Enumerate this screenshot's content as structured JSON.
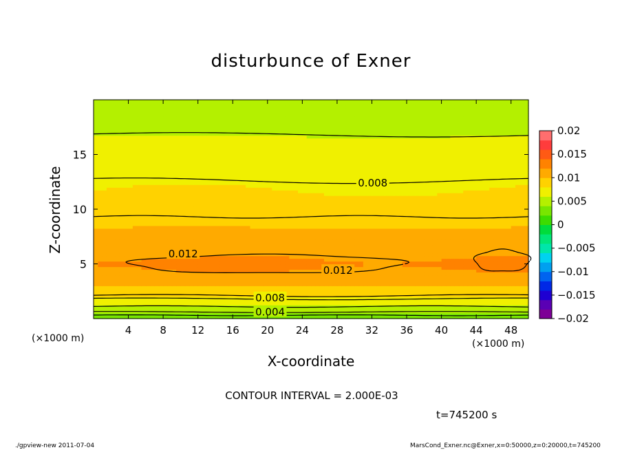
{
  "chart_data": {
    "type": "heatmap",
    "title": "disturbunce of Exner",
    "xlabel": "X-coordinate",
    "ylabel": "Z-coordinate",
    "x_unit_left": "(×1000 m)",
    "x_unit_right": "(×1000 m)",
    "xlim": [
      0,
      50
    ],
    "ylim": [
      0,
      20
    ],
    "x_ticks": [
      4,
      8,
      12,
      16,
      20,
      24,
      28,
      32,
      36,
      40,
      44,
      48
    ],
    "x_tick_labels": [
      "4",
      "8",
      "12",
      "16",
      "20",
      "24",
      "28",
      "32",
      "36",
      "40",
      "44",
      "48"
    ],
    "y_ticks": [
      5,
      10,
      15
    ],
    "y_tick_labels": [
      "5",
      "10",
      "15"
    ],
    "colorbar": {
      "range": [
        -0.02,
        0.02
      ],
      "tick_labels": [
        "0.02",
        "0.015",
        "0.01",
        "0.005",
        "0",
        "−0.005",
        "−0.01",
        "−0.015",
        "−0.02"
      ],
      "colors": [
        "#7d0096",
        "#5a00b4",
        "#1e00d2",
        "#0028e6",
        "#0064f0",
        "#00a0f0",
        "#00d2f0",
        "#00e6aa",
        "#00e678",
        "#00dc3c",
        "#3cdc00",
        "#78e600",
        "#b4f000",
        "#f0f000",
        "#ffd200",
        "#ffaa00",
        "#ff8200",
        "#ff5a14",
        "#ff3c3c",
        "#ff6e6e"
      ]
    },
    "approx_profile_z_value": [
      [
        0,
        0.003
      ],
      [
        1,
        0.005
      ],
      [
        2,
        0.008
      ],
      [
        3,
        0.01
      ],
      [
        4,
        0.0115
      ],
      [
        5,
        0.0125
      ],
      [
        6,
        0.0115
      ],
      [
        7,
        0.0108
      ],
      [
        8,
        0.0102
      ],
      [
        9,
        0.0095
      ],
      [
        10,
        0.0088
      ],
      [
        11,
        0.0083
      ],
      [
        12,
        0.0079
      ],
      [
        13,
        0.0075
      ],
      [
        14,
        0.0071
      ],
      [
        15,
        0.0068
      ],
      [
        16,
        0.0064
      ],
      [
        17,
        0.0058
      ],
      [
        18,
        0.0054
      ],
      [
        20,
        0.0052
      ]
    ],
    "contour_labels": [
      {
        "text": "0.012",
        "x": 10.3,
        "z": 5.9
      },
      {
        "text": "0.012",
        "x": 28.1,
        "z": 4.4
      },
      {
        "text": "0.008",
        "x": 32.1,
        "z": 12.4
      },
      {
        "text": "0.008",
        "x": 20.3,
        "z": 1.9
      },
      {
        "text": "0.004",
        "x": 20.3,
        "z": 0.6
      }
    ],
    "contour_interval_text": "CONTOUR INTERVAL = 2.000E-03",
    "time_text": "t=745200 s",
    "footer_left": "./gpview-new   2011-07-04",
    "footer_right": "MarsCond_Exner.nc@Exner,x=0:50000,z=0:20000,t=745200"
  }
}
